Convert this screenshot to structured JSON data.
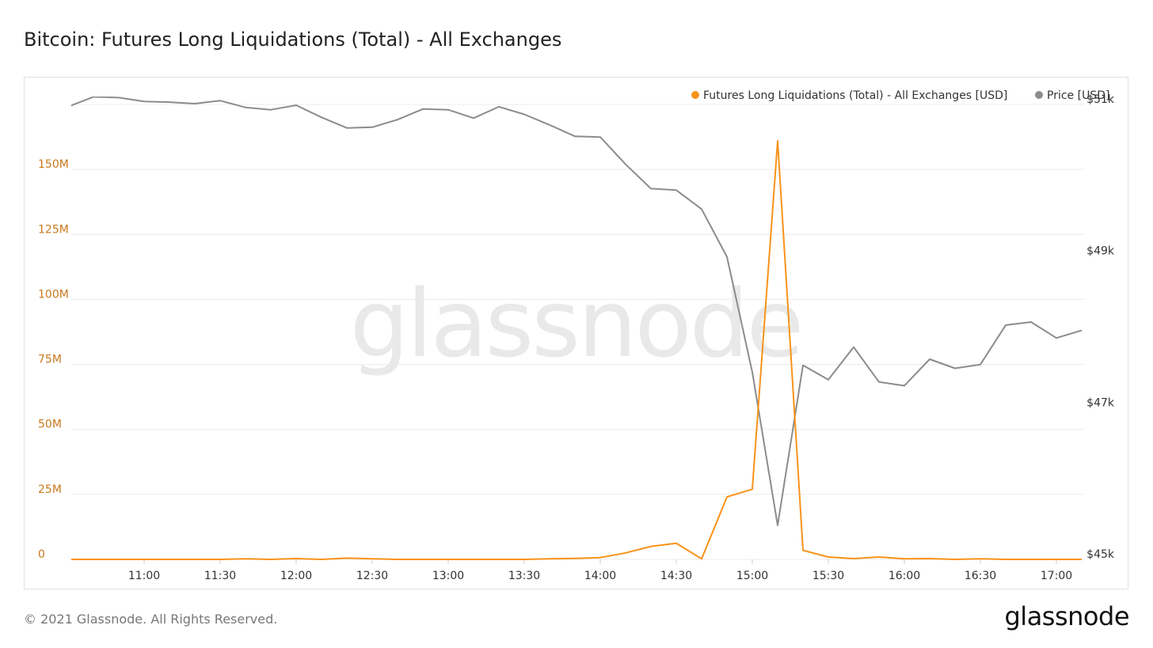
{
  "title": "Bitcoin: Futures Long Liquidations (Total) - All Exchanges",
  "footer": {
    "copyright": "© 2021 Glassnode. All Rights Reserved.",
    "logo": "glassnode"
  },
  "watermark": "glassnode",
  "colors": {
    "liquidations": "#f7931a",
    "price": "#8c8c8c",
    "grid": "#ececec",
    "left_axis": "#c9781c"
  },
  "chart_data": {
    "type": "line",
    "title": "Bitcoin: Futures Long Liquidations (Total) - All Exchanges",
    "legend_position": "top-right",
    "grid": true,
    "x_ticks": [
      "11:00",
      "11:30",
      "12:00",
      "12:30",
      "13:00",
      "13:30",
      "14:00",
      "14:30",
      "15:00",
      "15:30",
      "16:00",
      "16:30",
      "17:00"
    ],
    "y_left": {
      "ticks": [
        "0",
        "25M",
        "50M",
        "75M",
        "100M",
        "125M",
        "150M"
      ],
      "range": [
        0,
        175000000
      ]
    },
    "y_right": {
      "ticks": [
        "$45k",
        "$47k",
        "$49k",
        "$51k"
      ],
      "range": [
        45000,
        51000
      ]
    },
    "x_range_minutes_from_11_00": [
      -28.75,
      371.25
    ],
    "series": [
      {
        "name": "Futures Long Liquidations (Total) - All Exchanges [USD]",
        "axis": "left",
        "x_minutes_from_11_00": [
          -30,
          -20,
          -10,
          0,
          10,
          20,
          30,
          40,
          50,
          60,
          70,
          80,
          90,
          100,
          110,
          120,
          130,
          140,
          150,
          160,
          170,
          180,
          190,
          200,
          210,
          220,
          230,
          240,
          250,
          260,
          270,
          280,
          290,
          300,
          310,
          320,
          330,
          340,
          350,
          360,
          370
        ],
        "values": [
          0,
          0,
          0,
          0,
          0,
          0,
          0,
          200000,
          0,
          300000,
          0,
          500000,
          200000,
          0,
          0,
          0,
          0,
          0,
          0,
          200000,
          400000,
          700000,
          2500000,
          5000000,
          6200000,
          200000,
          24000000,
          27000000,
          161000000,
          3500000,
          900000,
          300000,
          900000,
          200000,
          300000,
          0,
          200000,
          0,
          0,
          0,
          0
        ]
      },
      {
        "name": "Price [USD]",
        "axis": "right",
        "x_minutes_from_11_00": [
          -30,
          -20,
          -10,
          0,
          10,
          20,
          30,
          40,
          50,
          60,
          70,
          80,
          90,
          100,
          110,
          120,
          130,
          140,
          150,
          160,
          170,
          180,
          190,
          200,
          210,
          220,
          230,
          240,
          250,
          260,
          270,
          280,
          290,
          300,
          310,
          320,
          330,
          340,
          350,
          360,
          370
        ],
        "values": [
          50970,
          51100,
          51090,
          51040,
          51030,
          51010,
          51050,
          50960,
          50930,
          50990,
          50830,
          50690,
          50700,
          50800,
          50940,
          50930,
          50820,
          50970,
          50870,
          50730,
          50580,
          50570,
          50210,
          49890,
          49870,
          49620,
          48990,
          47470,
          45450,
          47560,
          47370,
          47800,
          47340,
          47290,
          47640,
          47520,
          47570,
          48090,
          48130,
          47920,
          48020
        ]
      }
    ]
  },
  "legend": [
    {
      "label": "Futures Long Liquidations (Total) - All Exchanges [USD]"
    },
    {
      "label": "Price [USD]"
    }
  ]
}
